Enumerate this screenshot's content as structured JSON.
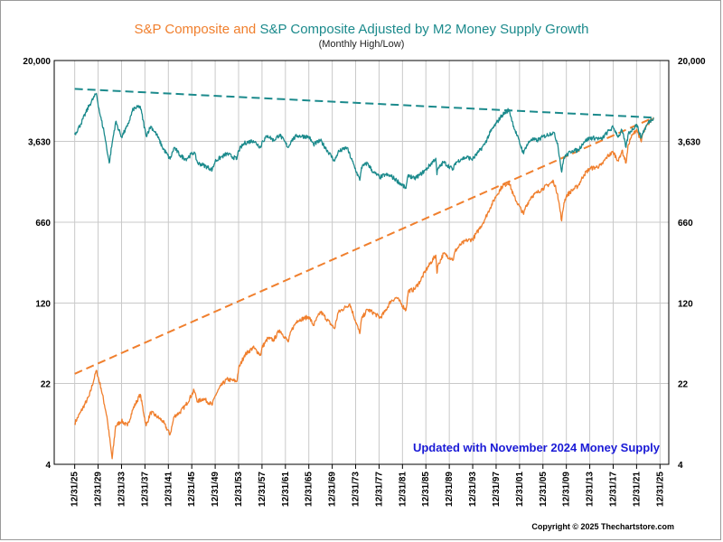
{
  "chart_data": {
    "type": "line",
    "title_parts": [
      {
        "text": "S&P Composite and ",
        "color": "#f07f2d"
      },
      {
        "text": "S&P Composite Adjusted by M2 Money Supply Growth",
        "color": "#1b8a8c"
      }
    ],
    "subtitle": "(Monthly High/Low)",
    "y_scale": "log",
    "ylim": [
      4,
      20000
    ],
    "y_ticks": [
      {
        "value": 4,
        "label": "4"
      },
      {
        "value": 22,
        "label": "22"
      },
      {
        "value": 120,
        "label": "120"
      },
      {
        "value": 660,
        "label": "660"
      },
      {
        "value": 3630,
        "label": "3,630"
      },
      {
        "value": 20000,
        "label": "20,000"
      }
    ],
    "xlim": [
      1922.5,
      2027.5
    ],
    "x_ticks": [
      "12/31/25",
      "12/31/29",
      "12/31/33",
      "12/31/37",
      "12/31/41",
      "12/31/45",
      "12/31/49",
      "12/31/53",
      "12/31/57",
      "12/31/61",
      "12/31/65",
      "12/31/69",
      "12/31/73",
      "12/31/77",
      "12/31/81",
      "12/31/85",
      "12/31/89",
      "12/31/93",
      "12/31/97",
      "12/31/01",
      "12/31/05",
      "12/31/09",
      "12/31/13",
      "12/31/17",
      "12/31/21",
      "12/31/25"
    ],
    "grid": true,
    "series": [
      {
        "name": "S&P Composite",
        "color": "#f07f2d",
        "points": [
          [
            1926,
            9.5
          ],
          [
            1927,
            12
          ],
          [
            1928.5,
            17
          ],
          [
            1929.7,
            29
          ],
          [
            1930.5,
            20
          ],
          [
            1931.5,
            11
          ],
          [
            1932.4,
            4.5
          ],
          [
            1933,
            9
          ],
          [
            1934,
            10
          ],
          [
            1935,
            9
          ],
          [
            1936,
            13
          ],
          [
            1937.2,
            17.5
          ],
          [
            1938.2,
            9
          ],
          [
            1939,
            12
          ],
          [
            1940,
            11
          ],
          [
            1941,
            10
          ],
          [
            1942.3,
            7.5
          ],
          [
            1943,
            11
          ],
          [
            1944,
            12
          ],
          [
            1945,
            14
          ],
          [
            1946.4,
            19
          ],
          [
            1947,
            15
          ],
          [
            1948,
            16
          ],
          [
            1949.5,
            14
          ],
          [
            1950,
            17
          ],
          [
            1951,
            21
          ],
          [
            1952,
            24
          ],
          [
            1953.7,
            23
          ],
          [
            1954,
            30
          ],
          [
            1955,
            40
          ],
          [
            1956.5,
            47
          ],
          [
            1957.8,
            40
          ],
          [
            1958,
            47
          ],
          [
            1959,
            57
          ],
          [
            1960,
            55
          ],
          [
            1961,
            68
          ],
          [
            1962.5,
            53
          ],
          [
            1963,
            67
          ],
          [
            1964,
            83
          ],
          [
            1966,
            90
          ],
          [
            1966.8,
            75
          ],
          [
            1968,
            100
          ],
          [
            1970.4,
            70
          ],
          [
            1971,
            98
          ],
          [
            1973,
            118
          ],
          [
            1974.7,
            63
          ],
          [
            1975,
            85
          ],
          [
            1976,
            105
          ],
          [
            1977,
            98
          ],
          [
            1978.2,
            88
          ],
          [
            1979,
            100
          ],
          [
            1980,
            125
          ],
          [
            1981,
            135
          ],
          [
            1982.6,
            103
          ],
          [
            1983,
            155
          ],
          [
            1984,
            160
          ],
          [
            1985,
            190
          ],
          [
            1986,
            240
          ],
          [
            1987.7,
            330
          ],
          [
            1987.9,
            225
          ],
          [
            1988,
            260
          ],
          [
            1989,
            340
          ],
          [
            1990.7,
            300
          ],
          [
            1991,
            360
          ],
          [
            1992,
            415
          ],
          [
            1993,
            450
          ],
          [
            1994,
            460
          ],
          [
            1995,
            560
          ],
          [
            1996,
            690
          ],
          [
            1997,
            900
          ],
          [
            1998,
            1150
          ],
          [
            1999,
            1400
          ],
          [
            2000.2,
            1530
          ],
          [
            2001,
            1150
          ],
          [
            2002.7,
            780
          ],
          [
            2003,
            900
          ],
          [
            2004,
            1130
          ],
          [
            2005,
            1230
          ],
          [
            2006,
            1350
          ],
          [
            2007.8,
            1565
          ],
          [
            2008.5,
            1200
          ],
          [
            2009.2,
            680
          ],
          [
            2009.6,
            1000
          ],
          [
            2010,
            1150
          ],
          [
            2011,
            1300
          ],
          [
            2012,
            1420
          ],
          [
            2013,
            1800
          ],
          [
            2014,
            2050
          ],
          [
            2015,
            2100
          ],
          [
            2016,
            2200
          ],
          [
            2017,
            2650
          ],
          [
            2018,
            2900
          ],
          [
            2018.9,
            2400
          ],
          [
            2019.5,
            3000
          ],
          [
            2020.2,
            2300
          ],
          [
            2020.6,
            3400
          ],
          [
            2021,
            3900
          ],
          [
            2022,
            4700
          ],
          [
            2022.8,
            3600
          ],
          [
            2023,
            4200
          ],
          [
            2024,
            5300
          ],
          [
            2024.9,
            6000
          ]
        ]
      },
      {
        "name": "S&P Composite Adjusted by M2 Money Supply Growth",
        "color": "#1b8a8c",
        "points": [
          [
            1926,
            4200
          ],
          [
            1927,
            5200
          ],
          [
            1928.5,
            7800
          ],
          [
            1929.7,
            10000
          ],
          [
            1930.3,
            6500
          ],
          [
            1931,
            4500
          ],
          [
            1931.9,
            2300
          ],
          [
            1932.4,
            3500
          ],
          [
            1933,
            5500
          ],
          [
            1934,
            4000
          ],
          [
            1935,
            5000
          ],
          [
            1936,
            7200
          ],
          [
            1937.2,
            7600
          ],
          [
            1938.2,
            4100
          ],
          [
            1939,
            5000
          ],
          [
            1940,
            4200
          ],
          [
            1941,
            3200
          ],
          [
            1942.3,
            2500
          ],
          [
            1943,
            3200
          ],
          [
            1944,
            2700
          ],
          [
            1945,
            2500
          ],
          [
            1946.4,
            2900
          ],
          [
            1947,
            2300
          ],
          [
            1948,
            2200
          ],
          [
            1949.5,
            2000
          ],
          [
            1950,
            2400
          ],
          [
            1951,
            2600
          ],
          [
            1952,
            2800
          ],
          [
            1953.7,
            2500
          ],
          [
            1954,
            3000
          ],
          [
            1955,
            3500
          ],
          [
            1956.5,
            3700
          ],
          [
            1957.8,
            3200
          ],
          [
            1958,
            3600
          ],
          [
            1959,
            4100
          ],
          [
            1960,
            3700
          ],
          [
            1961,
            4200
          ],
          [
            1962.5,
            3200
          ],
          [
            1963,
            3700
          ],
          [
            1964,
            4100
          ],
          [
            1966,
            4000
          ],
          [
            1966.8,
            3400
          ],
          [
            1968,
            3700
          ],
          [
            1970.4,
            2400
          ],
          [
            1971,
            2900
          ],
          [
            1972.5,
            3200
          ],
          [
            1974.7,
            1600
          ],
          [
            1975,
            2100
          ],
          [
            1976,
            2300
          ],
          [
            1977,
            1900
          ],
          [
            1978.2,
            1700
          ],
          [
            1979,
            1800
          ],
          [
            1980,
            1750
          ],
          [
            1981,
            1600
          ],
          [
            1982.6,
            1350
          ],
          [
            1983,
            1800
          ],
          [
            1984,
            1650
          ],
          [
            1985,
            1800
          ],
          [
            1986,
            2000
          ],
          [
            1987.7,
            2550
          ],
          [
            1987.9,
            1800
          ],
          [
            1988,
            2000
          ],
          [
            1989,
            2350
          ],
          [
            1990.7,
            2000
          ],
          [
            1991,
            2300
          ],
          [
            1992,
            2500
          ],
          [
            1993,
            2600
          ],
          [
            1994,
            2500
          ],
          [
            1995,
            2900
          ],
          [
            1996,
            3400
          ],
          [
            1997,
            4400
          ],
          [
            1998,
            5300
          ],
          [
            1999,
            6300
          ],
          [
            2000.2,
            7100
          ],
          [
            2001,
            5000
          ],
          [
            2002.7,
            2800
          ],
          [
            2003,
            3200
          ],
          [
            2004,
            3800
          ],
          [
            2005,
            3700
          ],
          [
            2006,
            4000
          ],
          [
            2007.8,
            4400
          ],
          [
            2008.5,
            3500
          ],
          [
            2009.2,
            1900
          ],
          [
            2009.6,
            2600
          ],
          [
            2010,
            2700
          ],
          [
            2011,
            3000
          ],
          [
            2012,
            3000
          ],
          [
            2013,
            3600
          ],
          [
            2014,
            3900
          ],
          [
            2015,
            3900
          ],
          [
            2016,
            3800
          ],
          [
            2017,
            4400
          ],
          [
            2018,
            4900
          ],
          [
            2018.9,
            4000
          ],
          [
            2019.5,
            4600
          ],
          [
            2020.2,
            3200
          ],
          [
            2020.6,
            4300
          ],
          [
            2021,
            4500
          ],
          [
            2022,
            5200
          ],
          [
            2022.8,
            3900
          ],
          [
            2023,
            4300
          ],
          [
            2024,
            5400
          ],
          [
            2024.9,
            6000
          ]
        ]
      }
    ],
    "trendlines": [
      {
        "series": "S&P Composite",
        "color": "#f07f2d",
        "start": [
          1926,
          27
        ],
        "end": [
          2024.9,
          6000
        ]
      },
      {
        "series": "S&P Composite Adjusted by M2 Money Supply Growth",
        "color": "#1b8a8c",
        "start": [
          1926,
          11000
        ],
        "end": [
          2024.9,
          6000
        ]
      }
    ],
    "annotation": {
      "text": "Updated with November 2024 Money Supply",
      "color": "#1a1ad6"
    },
    "copyright": "Copyright © 2025 Thechartstore.com"
  }
}
